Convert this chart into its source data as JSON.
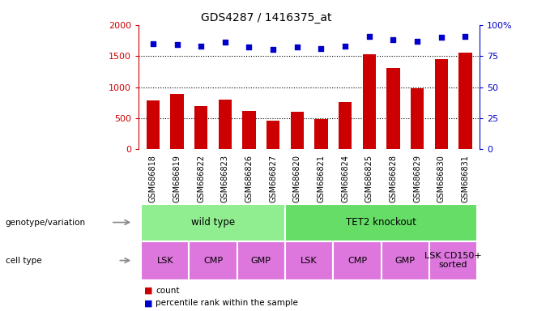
{
  "title": "GDS4287 / 1416375_at",
  "samples": [
    "GSM686818",
    "GSM686819",
    "GSM686822",
    "GSM686823",
    "GSM686826",
    "GSM686827",
    "GSM686820",
    "GSM686821",
    "GSM686824",
    "GSM686825",
    "GSM686828",
    "GSM686829",
    "GSM686830",
    "GSM686831"
  ],
  "counts": [
    780,
    890,
    700,
    800,
    615,
    460,
    600,
    480,
    760,
    1530,
    1310,
    980,
    1450,
    1550
  ],
  "percentile_ranks": [
    85,
    84,
    83,
    86,
    82,
    80,
    82,
    81,
    83,
    91,
    88,
    87,
    90,
    91
  ],
  "bar_color": "#cc0000",
  "dot_color": "#0000cc",
  "ylim_left": [
    0,
    2000
  ],
  "ylim_right": [
    0,
    100
  ],
  "yticks_left": [
    0,
    500,
    1000,
    1500,
    2000
  ],
  "yticks_right": [
    0,
    25,
    50,
    75,
    100
  ],
  "ytick_right_labels": [
    "0",
    "25",
    "50",
    "75",
    "100%"
  ],
  "grid_values": [
    500,
    1000,
    1500
  ],
  "genotype_labels": [
    {
      "label": "wild type",
      "start": 0,
      "end": 6,
      "color": "#90ee90"
    },
    {
      "label": "TET2 knockout",
      "start": 6,
      "end": 14,
      "color": "#66dd66"
    }
  ],
  "cell_type_groups": [
    {
      "label": "LSK",
      "start": 0,
      "end": 2
    },
    {
      "label": "CMP",
      "start": 2,
      "end": 4
    },
    {
      "label": "GMP",
      "start": 4,
      "end": 6
    },
    {
      "label": "LSK",
      "start": 6,
      "end": 8
    },
    {
      "label": "CMP",
      "start": 8,
      "end": 10
    },
    {
      "label": "GMP",
      "start": 10,
      "end": 12
    },
    {
      "label": "LSK CD150+\nsorted",
      "start": 12,
      "end": 14
    }
  ],
  "cell_type_color": "#dd77dd",
  "bg_color": "#ffffff",
  "tick_area_bg": "#d0d0d0",
  "title_fontsize": 10,
  "tick_label_fontsize": 7,
  "xlim_min": -0.6,
  "xlim_max": 13.6,
  "bar_width": 0.55
}
